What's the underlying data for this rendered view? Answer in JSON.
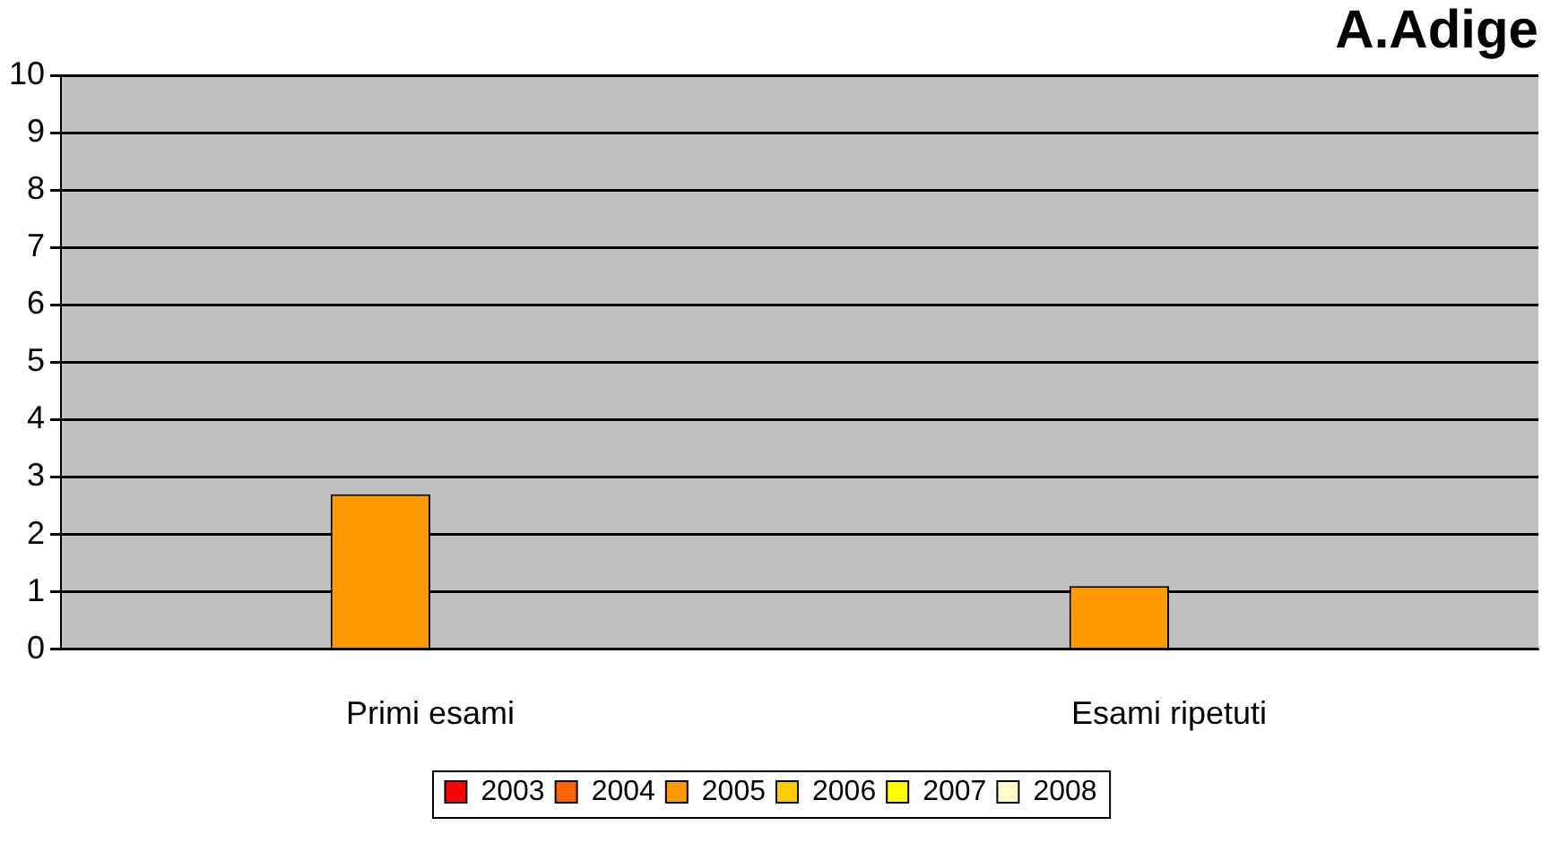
{
  "chart_data": {
    "type": "bar",
    "title": "A.Adige",
    "categories": [
      "Primi esami",
      "Esami ripetuti"
    ],
    "series": [
      {
        "name": "2003",
        "color": "#ff0000",
        "values": [
          null,
          null
        ]
      },
      {
        "name": "2004",
        "color": "#ff6600",
        "values": [
          null,
          null
        ]
      },
      {
        "name": "2005",
        "color": "#ff9900",
        "values": [
          2.7,
          1.1
        ]
      },
      {
        "name": "2006",
        "color": "#ffcc00",
        "values": [
          null,
          null
        ]
      },
      {
        "name": "2007",
        "color": "#ffff00",
        "values": [
          null,
          null
        ]
      },
      {
        "name": "2008",
        "color": "#ffffcc",
        "values": [
          null,
          null
        ]
      }
    ],
    "ylim": [
      0,
      10
    ],
    "yticks": [
      0,
      1,
      2,
      3,
      4,
      5,
      6,
      7,
      8,
      9,
      10
    ],
    "grid": "y",
    "legend": "bottom"
  }
}
